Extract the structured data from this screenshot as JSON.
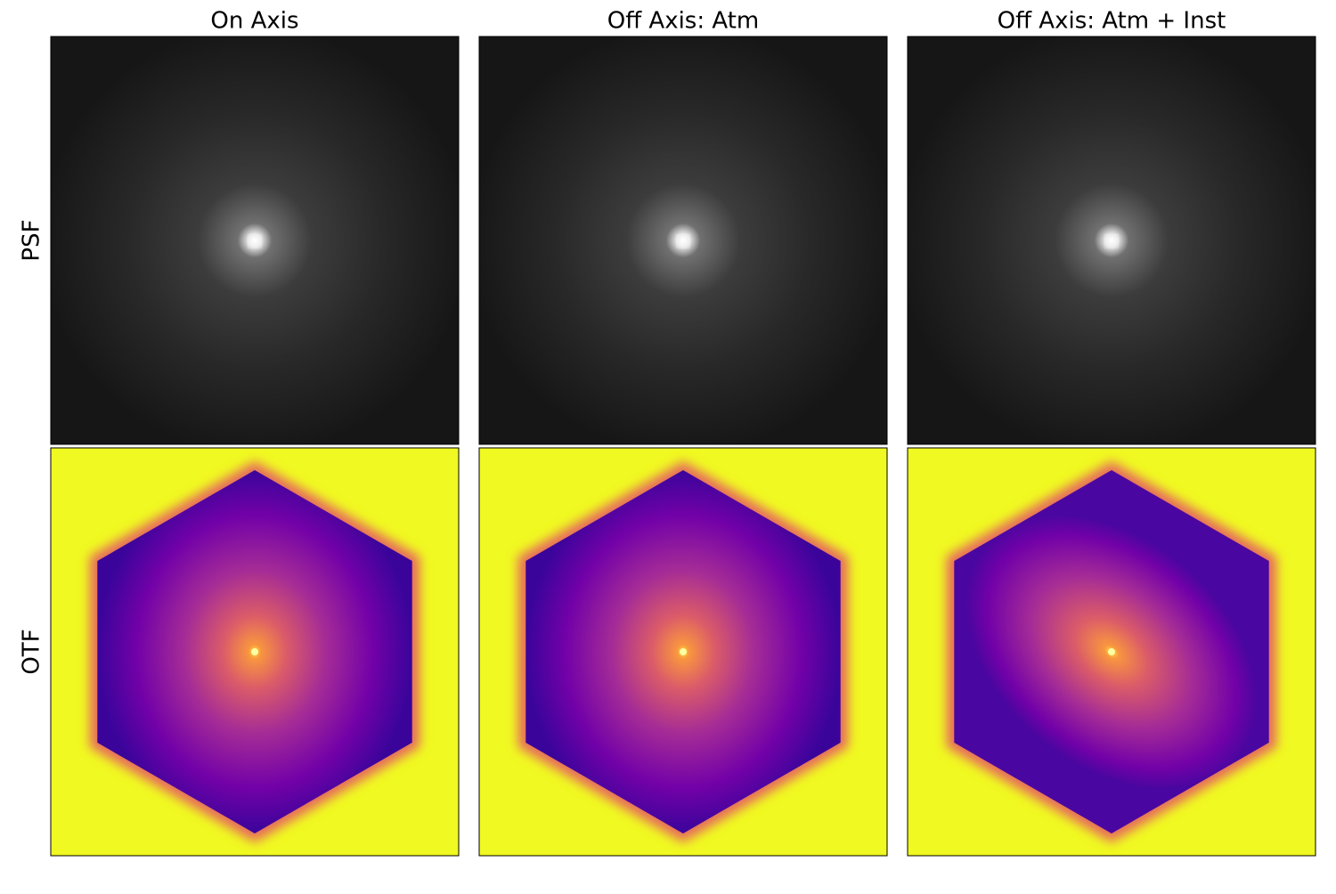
{
  "columns": [
    "On Axis",
    "Off Axis: Atm",
    "Off Axis: Atm + Inst"
  ],
  "rows": [
    "PSF",
    "OTF"
  ]
}
